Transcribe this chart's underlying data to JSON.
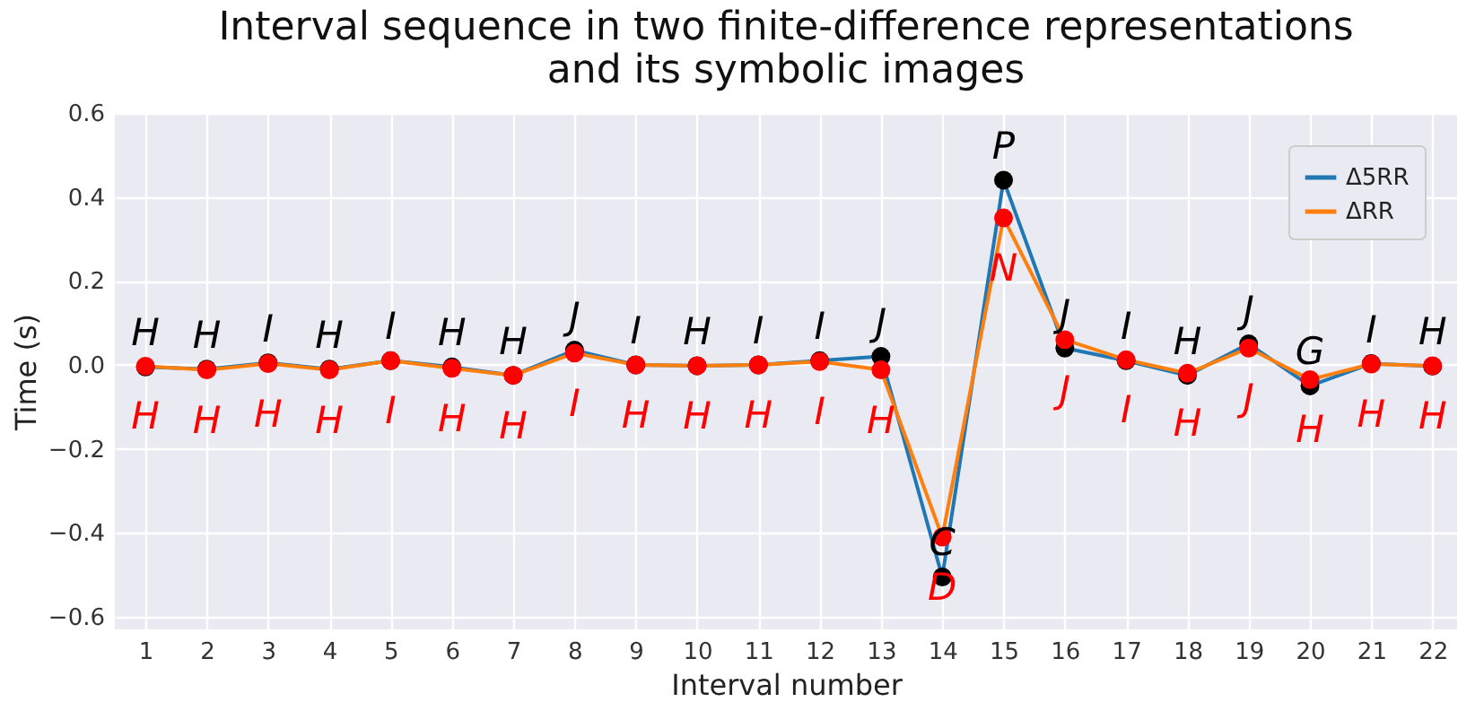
{
  "chart_data": {
    "type": "line",
    "title": "Interval sequence in two finite-difference representations\nand its symbolic images",
    "xlabel": "Interval number",
    "ylabel": "Time (s)",
    "x": [
      1,
      2,
      3,
      4,
      5,
      6,
      7,
      8,
      9,
      10,
      11,
      12,
      13,
      14,
      15,
      16,
      17,
      18,
      19,
      20,
      21,
      22
    ],
    "xlim": [
      0.5,
      22.4
    ],
    "xticks": [
      1,
      2,
      3,
      4,
      5,
      6,
      7,
      8,
      9,
      10,
      11,
      12,
      13,
      14,
      15,
      16,
      17,
      18,
      19,
      20,
      21,
      22
    ],
    "ylim": [
      -0.63,
      0.6
    ],
    "yticks": [
      -0.6,
      -0.4,
      -0.2,
      {
        "value": 0,
        "label": "0.0"
      },
      0.2,
      0.4,
      0.6
    ],
    "series": [
      {
        "name": "Δ5RR",
        "color": "#1f77b4",
        "colors": [
          "#000000",
          "#000000",
          "#000000",
          "#000000",
          "#000000",
          "#000000",
          "#000000",
          "#000000",
          "#000000",
          "#000000",
          "#000000",
          "#000000",
          "#000000",
          "#000000",
          "#000000",
          "#000000",
          "#000000",
          "#000000",
          "#000000",
          "#000000",
          "#000000",
          "#000000"
        ],
        "values": [
          -0.005,
          -0.01,
          0.005,
          -0.01,
          0.01,
          -0.005,
          -0.025,
          0.035,
          0.0,
          -0.002,
          0.0,
          0.01,
          0.02,
          -0.505,
          0.44,
          0.04,
          0.01,
          -0.025,
          0.05,
          -0.05,
          0.003,
          -0.003
        ],
        "value_labels": [
          "H",
          "H",
          "I",
          "H",
          "I",
          "H",
          "H",
          "J",
          "I",
          "H",
          "I",
          "I",
          "J",
          "C",
          "P",
          "J",
          "I",
          "H",
          "J",
          "G",
          "I",
          "H"
        ]
      },
      {
        "name": "ΔRR",
        "color": "#ff7f0e",
        "colors": [
          "#ff0000",
          "#ff0000",
          "#ff0000",
          "#ff0000",
          "#ff0000",
          "#ff0000",
          "#ff0000",
          "#ff0000",
          "#ff0000",
          "#ff0000",
          "#ff0000",
          "#ff0000",
          "#ff0000",
          "#ff0000",
          "#ff0000",
          "#ff0000",
          "#ff0000",
          "#ff0000",
          "#ff0000",
          "#ff0000",
          "#ff0000",
          "#ff0000"
        ],
        "values": [
          -0.003,
          -0.012,
          0.003,
          -0.012,
          0.01,
          -0.008,
          -0.025,
          0.028,
          0.0,
          -0.002,
          0.0,
          0.008,
          -0.012,
          -0.41,
          0.35,
          0.06,
          0.012,
          -0.02,
          0.04,
          -0.035,
          0.002,
          -0.002
        ],
        "value_labels": [
          "H",
          "H",
          "H",
          "H",
          "I",
          "H",
          "H",
          "I",
          "H",
          "H",
          "H",
          "I",
          "H",
          "D",
          "N",
          "J",
          "I",
          "H",
          "J",
          "H",
          "H",
          "H"
        ]
      }
    ],
    "grid": true,
    "legend": "top right",
    "marker": "circle"
  }
}
